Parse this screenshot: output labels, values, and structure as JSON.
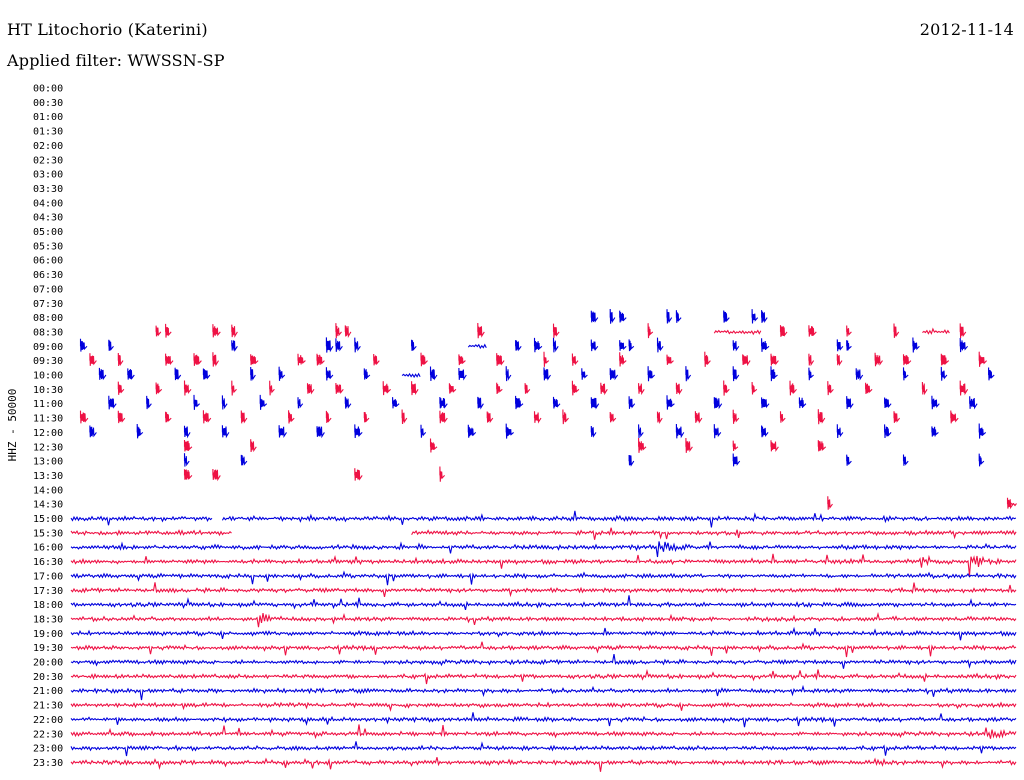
{
  "header": {
    "station": "HT Litochorio (Katerini)",
    "filter": "Applied filter: WWSSN-SP",
    "date": "2012-11-14"
  },
  "chart_data": {
    "type": "line",
    "title": "HT Litochorio (Katerini)",
    "subtitle": "Applied filter: WWSSN-SP",
    "date": "2012-11-14",
    "ylabel": "HHZ - 50000",
    "xlabel": "",
    "legend": "none",
    "grid": false,
    "colors": {
      "even": "#0000dd",
      "odd": "#ee1144"
    },
    "rows": [
      {
        "label": "00:00",
        "coverage": []
      },
      {
        "label": "00:30",
        "coverage": []
      },
      {
        "label": "01:00",
        "coverage": []
      },
      {
        "label": "01:30",
        "coverage": []
      },
      {
        "label": "02:00",
        "coverage": []
      },
      {
        "label": "02:30",
        "coverage": []
      },
      {
        "label": "03:00",
        "coverage": []
      },
      {
        "label": "03:30",
        "coverage": []
      },
      {
        "label": "04:00",
        "coverage": []
      },
      {
        "label": "04:30",
        "coverage": []
      },
      {
        "label": "05:00",
        "coverage": []
      },
      {
        "label": "05:30",
        "coverage": []
      },
      {
        "label": "06:00",
        "coverage": []
      },
      {
        "label": "06:30",
        "coverage": []
      },
      {
        "label": "07:00",
        "coverage": []
      },
      {
        "label": "07:30",
        "coverage": []
      },
      {
        "label": "08:00",
        "coverage": [],
        "bursts": [
          0.55,
          0.57,
          0.58,
          0.63,
          0.64,
          0.69,
          0.72,
          0.73
        ]
      },
      {
        "label": "08:30",
        "coverage": [
          [
            0.68,
            0.73
          ],
          [
            0.9,
            0.93
          ]
        ],
        "bursts": [
          0.09,
          0.1,
          0.17,
          0.15,
          0.28,
          0.29,
          0.43,
          0.51,
          0.61,
          0.75,
          0.78,
          0.94,
          0.87,
          0.82
        ]
      },
      {
        "label": "09:00",
        "coverage": [
          [
            0.42,
            0.44
          ]
        ],
        "bursts": [
          0.01,
          0.04,
          0.17,
          0.27,
          0.28,
          0.3,
          0.36,
          0.47,
          0.49,
          0.51,
          0.55,
          0.58,
          0.59,
          0.62,
          0.7,
          0.73,
          0.81,
          0.82,
          0.89,
          0.94
        ]
      },
      {
        "label": "09:30",
        "coverage": [],
        "bursts": [
          0.02,
          0.05,
          0.1,
          0.13,
          0.15,
          0.19,
          0.24,
          0.26,
          0.32,
          0.37,
          0.41,
          0.45,
          0.5,
          0.53,
          0.58,
          0.63,
          0.67,
          0.71,
          0.74,
          0.78,
          0.81,
          0.85,
          0.88,
          0.92,
          0.96
        ]
      },
      {
        "label": "10:00",
        "coverage": [
          [
            0.35,
            0.37
          ]
        ],
        "bursts": [
          0.03,
          0.06,
          0.11,
          0.14,
          0.19,
          0.22,
          0.27,
          0.31,
          0.38,
          0.41,
          0.46,
          0.5,
          0.54,
          0.57,
          0.61,
          0.65,
          0.7,
          0.74,
          0.78,
          0.83,
          0.88,
          0.92,
          0.97
        ]
      },
      {
        "label": "10:30",
        "coverage": [],
        "bursts": [
          0.05,
          0.09,
          0.12,
          0.17,
          0.21,
          0.25,
          0.28,
          0.33,
          0.36,
          0.4,
          0.45,
          0.48,
          0.53,
          0.56,
          0.6,
          0.64,
          0.69,
          0.72,
          0.76,
          0.8,
          0.84,
          0.9,
          0.94
        ]
      },
      {
        "label": "11:00",
        "coverage": [],
        "bursts": [
          0.04,
          0.08,
          0.13,
          0.16,
          0.2,
          0.24,
          0.29,
          0.34,
          0.39,
          0.43,
          0.47,
          0.51,
          0.55,
          0.59,
          0.63,
          0.68,
          0.73,
          0.77,
          0.82,
          0.86,
          0.91,
          0.95
        ]
      },
      {
        "label": "11:30",
        "coverage": [],
        "bursts": [
          0.01,
          0.05,
          0.1,
          0.14,
          0.18,
          0.23,
          0.27,
          0.31,
          0.35,
          0.39,
          0.44,
          0.49,
          0.52,
          0.57,
          0.62,
          0.66,
          0.7,
          0.75,
          0.79,
          0.87,
          0.93
        ]
      },
      {
        "label": "12:00",
        "coverage": [],
        "bursts": [
          0.02,
          0.07,
          0.12,
          0.16,
          0.22,
          0.26,
          0.3,
          0.37,
          0.42,
          0.46,
          0.55,
          0.6,
          0.64,
          0.68,
          0.73,
          0.81,
          0.86,
          0.91,
          0.96
        ]
      },
      {
        "label": "12:30",
        "coverage": [],
        "bursts": [
          0.12,
          0.19,
          0.38,
          0.6,
          0.65,
          0.7,
          0.74,
          0.79
        ]
      },
      {
        "label": "13:00",
        "coverage": [],
        "bursts": [
          0.12,
          0.18,
          0.59,
          0.7,
          0.82,
          0.88,
          0.96
        ]
      },
      {
        "label": "13:30",
        "coverage": [],
        "bursts": [
          0.12,
          0.15,
          0.3,
          0.39
        ]
      },
      {
        "label": "14:00",
        "coverage": []
      },
      {
        "label": "14:30",
        "coverage": [
          [
            0.99,
            1.0
          ]
        ],
        "bursts": [
          0.8,
          0.99
        ]
      },
      {
        "label": "15:00",
        "coverage": [
          [
            0.0,
            0.15
          ],
          [
            0.16,
            1.0
          ]
        ]
      },
      {
        "label": "15:30",
        "coverage": [
          [
            0.0,
            0.17
          ],
          [
            0.36,
            1.0
          ]
        ]
      },
      {
        "label": "16:00",
        "coverage": [
          [
            0.0,
            1.0
          ]
        ]
      },
      {
        "label": "16:30",
        "coverage": [
          [
            0.0,
            1.0
          ]
        ]
      },
      {
        "label": "17:00",
        "coverage": [
          [
            0.0,
            1.0
          ]
        ]
      },
      {
        "label": "17:30",
        "coverage": [
          [
            0.0,
            1.0
          ]
        ]
      },
      {
        "label": "18:00",
        "coverage": [
          [
            0.0,
            1.0
          ]
        ]
      },
      {
        "label": "18:30",
        "coverage": [
          [
            0.0,
            1.0
          ]
        ]
      },
      {
        "label": "19:00",
        "coverage": [
          [
            0.0,
            1.0
          ]
        ]
      },
      {
        "label": "19:30",
        "coverage": [
          [
            0.0,
            1.0
          ]
        ]
      },
      {
        "label": "20:00",
        "coverage": [
          [
            0.0,
            1.0
          ]
        ]
      },
      {
        "label": "20:30",
        "coverage": [
          [
            0.0,
            1.0
          ]
        ]
      },
      {
        "label": "21:00",
        "coverage": [
          [
            0.0,
            1.0
          ]
        ]
      },
      {
        "label": "21:30",
        "coverage": [
          [
            0.0,
            1.0
          ]
        ]
      },
      {
        "label": "22:00",
        "coverage": [
          [
            0.0,
            1.0
          ]
        ]
      },
      {
        "label": "22:30",
        "coverage": [
          [
            0.0,
            1.0
          ]
        ]
      },
      {
        "label": "23:00",
        "coverage": [
          [
            0.0,
            1.0
          ]
        ]
      },
      {
        "label": "23:30",
        "coverage": [
          [
            0.0,
            1.0
          ]
        ]
      }
    ],
    "events": [
      {
        "row": "16:00",
        "at": 0.62,
        "amplitude": 9
      },
      {
        "row": "16:30",
        "at": 0.95,
        "amplitude": 10
      },
      {
        "row": "16:30",
        "at": 0.9,
        "amplitude": 5
      },
      {
        "row": "18:30",
        "at": 0.2,
        "amplitude": 5
      },
      {
        "row": "22:30",
        "at": 0.97,
        "amplitude": 5
      },
      {
        "row": "23:30",
        "at": 0.85,
        "amplitude": 4
      }
    ]
  }
}
